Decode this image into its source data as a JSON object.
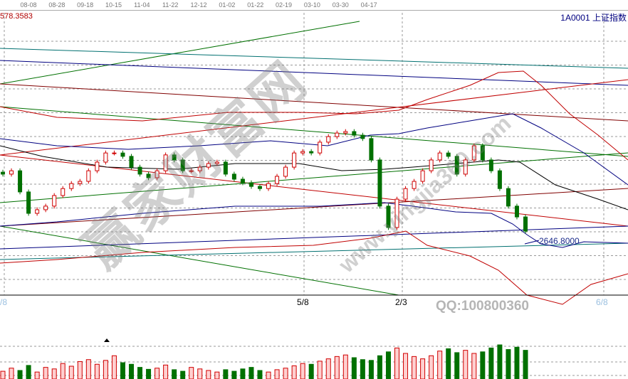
{
  "header": {
    "max_price_label": "578.3583",
    "symbol_label": "1A0001  上证指数",
    "date_ticks": [
      "08-08",
      "08-28",
      "09-18",
      "10-15",
      "11-04",
      "11-22",
      "12-12",
      "01-02",
      "01-22",
      "02-19",
      "03-10",
      "03-30",
      "04-17"
    ]
  },
  "bottom_axis_labels": {
    "left": "/8",
    "mid1": "5/8",
    "mid2": "2/3",
    "right": "6/8"
  },
  "low_price_label": "2646.8000",
  "watermark": {
    "site_name": "赢家财富网",
    "url": "www.yingjia360.com",
    "qq": "QQ:100800360"
  },
  "colors": {
    "up": "#d00000",
    "down": "#007000",
    "ma_black": "#000000",
    "band_blue": "#000080",
    "band_red": "#c00000"
  },
  "chart_data": {
    "type": "candlestick",
    "title": "",
    "ylim": [
      2434,
      3578.3583
    ],
    "min_marked": 2646.8,
    "closes": [
      2937,
      2951,
      2863,
      2774,
      2789,
      2804,
      2848,
      2877,
      2898,
      2907,
      2951,
      2987,
      3025,
      3025,
      3011,
      2966,
      2937,
      2922,
      2951,
      3017,
      2996,
      2951,
      2951,
      2966,
      2981,
      2987,
      2937,
      2916,
      2901,
      2886,
      2877,
      2898,
      2928,
      2966,
      3025,
      3031,
      3025,
      3070,
      3093,
      3108,
      3114,
      3099,
      3085,
      2996,
      2804,
      2715,
      2833,
      2877,
      2907,
      2951,
      2996,
      3025,
      3011,
      2937,
      2996,
      3055,
      2996,
      2951,
      2877,
      2804,
      2759,
      2700
    ],
    "volume": [
      20,
      28,
      22,
      35,
      18,
      30,
      26,
      40,
      33,
      45,
      50,
      38,
      48,
      60,
      42,
      38,
      30,
      25,
      28,
      36,
      24,
      20,
      30,
      26,
      22,
      18,
      24,
      20,
      26,
      30,
      22,
      18,
      24,
      28,
      34,
      40,
      38,
      46,
      52,
      58,
      62,
      55,
      50,
      48,
      60,
      70,
      80,
      66,
      58,
      52,
      60,
      72,
      78,
      68,
      74,
      66,
      70,
      80,
      88,
      76,
      82,
      74
    ]
  }
}
